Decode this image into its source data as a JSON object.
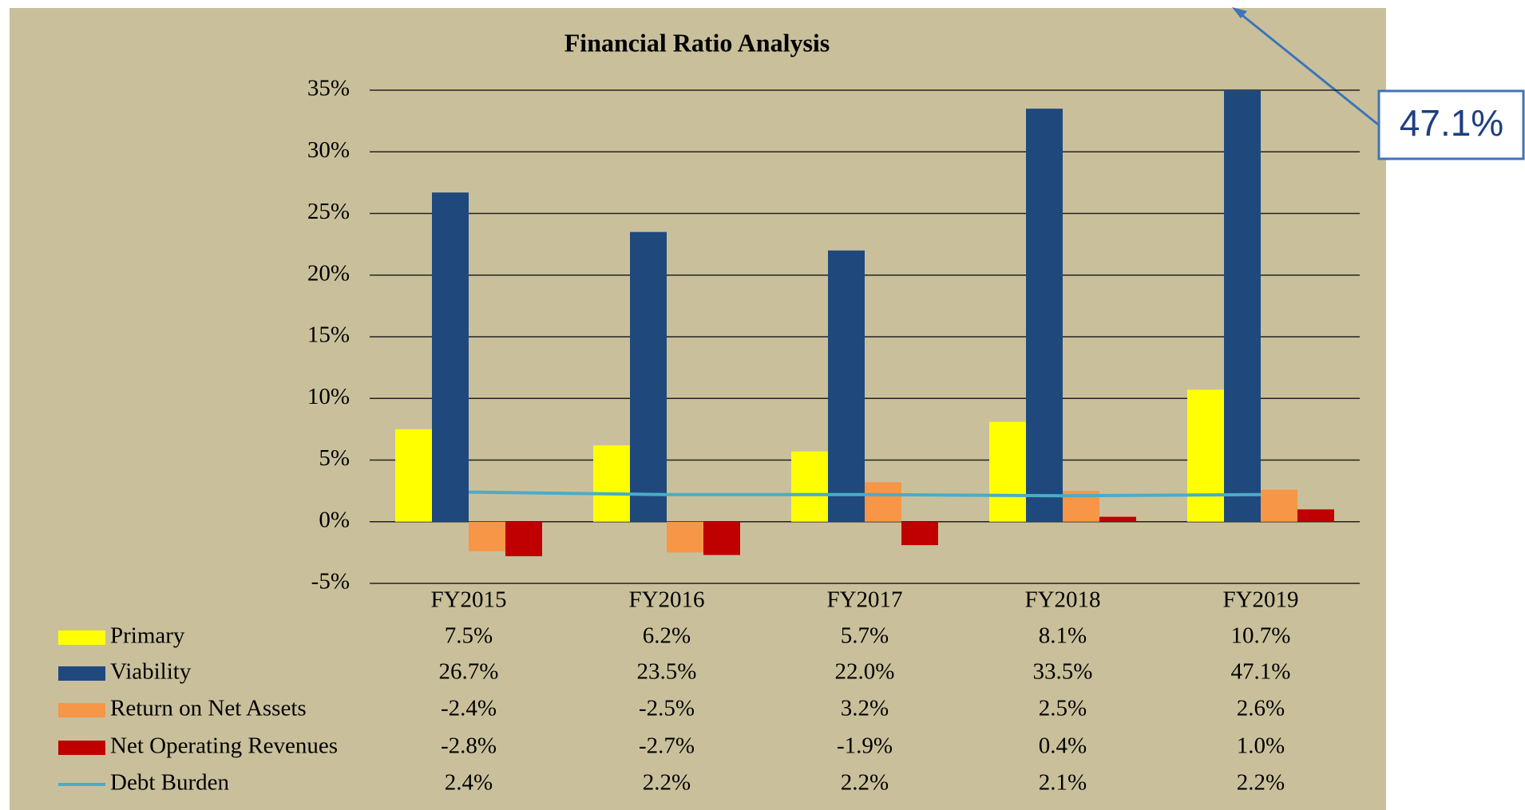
{
  "chart_data": {
    "type": "bar",
    "title": "Financial Ratio Analysis",
    "categories": [
      "FY2015",
      "FY2016",
      "FY2017",
      "FY2018",
      "FY2019"
    ],
    "series": [
      {
        "name": "Primary",
        "color": "#ffff00",
        "values": [
          7.5,
          6.2,
          5.7,
          8.1,
          10.7
        ],
        "value_labels": [
          "7.5%",
          "6.2%",
          "5.7%",
          "8.1%",
          "10.7%"
        ]
      },
      {
        "name": "Viability",
        "color": "#1f497d",
        "values": [
          26.7,
          23.5,
          22.0,
          33.5,
          47.1
        ],
        "value_labels": [
          "26.7%",
          "23.5%",
          "22.0%",
          "33.5%",
          "47.1%"
        ]
      },
      {
        "name": "Return on Net Assets",
        "color": "#f79646",
        "values": [
          -2.4,
          -2.5,
          3.2,
          2.5,
          2.6
        ],
        "value_labels": [
          "-2.4%",
          "-2.5%",
          "3.2%",
          "2.5%",
          "2.6%"
        ]
      },
      {
        "name": "Net Operating Revenues",
        "color": "#c00000",
        "values": [
          -2.8,
          -2.7,
          -1.9,
          0.4,
          1.0
        ],
        "value_labels": [
          "-2.8%",
          "-2.7%",
          "-1.9%",
          "0.4%",
          "1.0%"
        ]
      },
      {
        "name": "Debt Burden",
        "color": "#4bacc6",
        "type": "line",
        "values": [
          2.4,
          2.2,
          2.2,
          2.1,
          2.2
        ],
        "value_labels": [
          "2.4%",
          "2.2%",
          "2.2%",
          "2.1%",
          "2.2%"
        ]
      }
    ],
    "ylim": [
      -5,
      35
    ],
    "yticks": [
      {
        "value": -5,
        "label": "-5%"
      },
      {
        "value": 0,
        "label": "0%"
      },
      {
        "value": 5,
        "label": "5%"
      },
      {
        "value": 10,
        "label": "10%"
      },
      {
        "value": 15,
        "label": "15%"
      },
      {
        "value": 20,
        "label": "20%"
      },
      {
        "value": 25,
        "label": "25%"
      },
      {
        "value": 30,
        "label": "30%"
      },
      {
        "value": 35,
        "label": "35%"
      }
    ],
    "grid": true,
    "annotation": "47.1%"
  }
}
